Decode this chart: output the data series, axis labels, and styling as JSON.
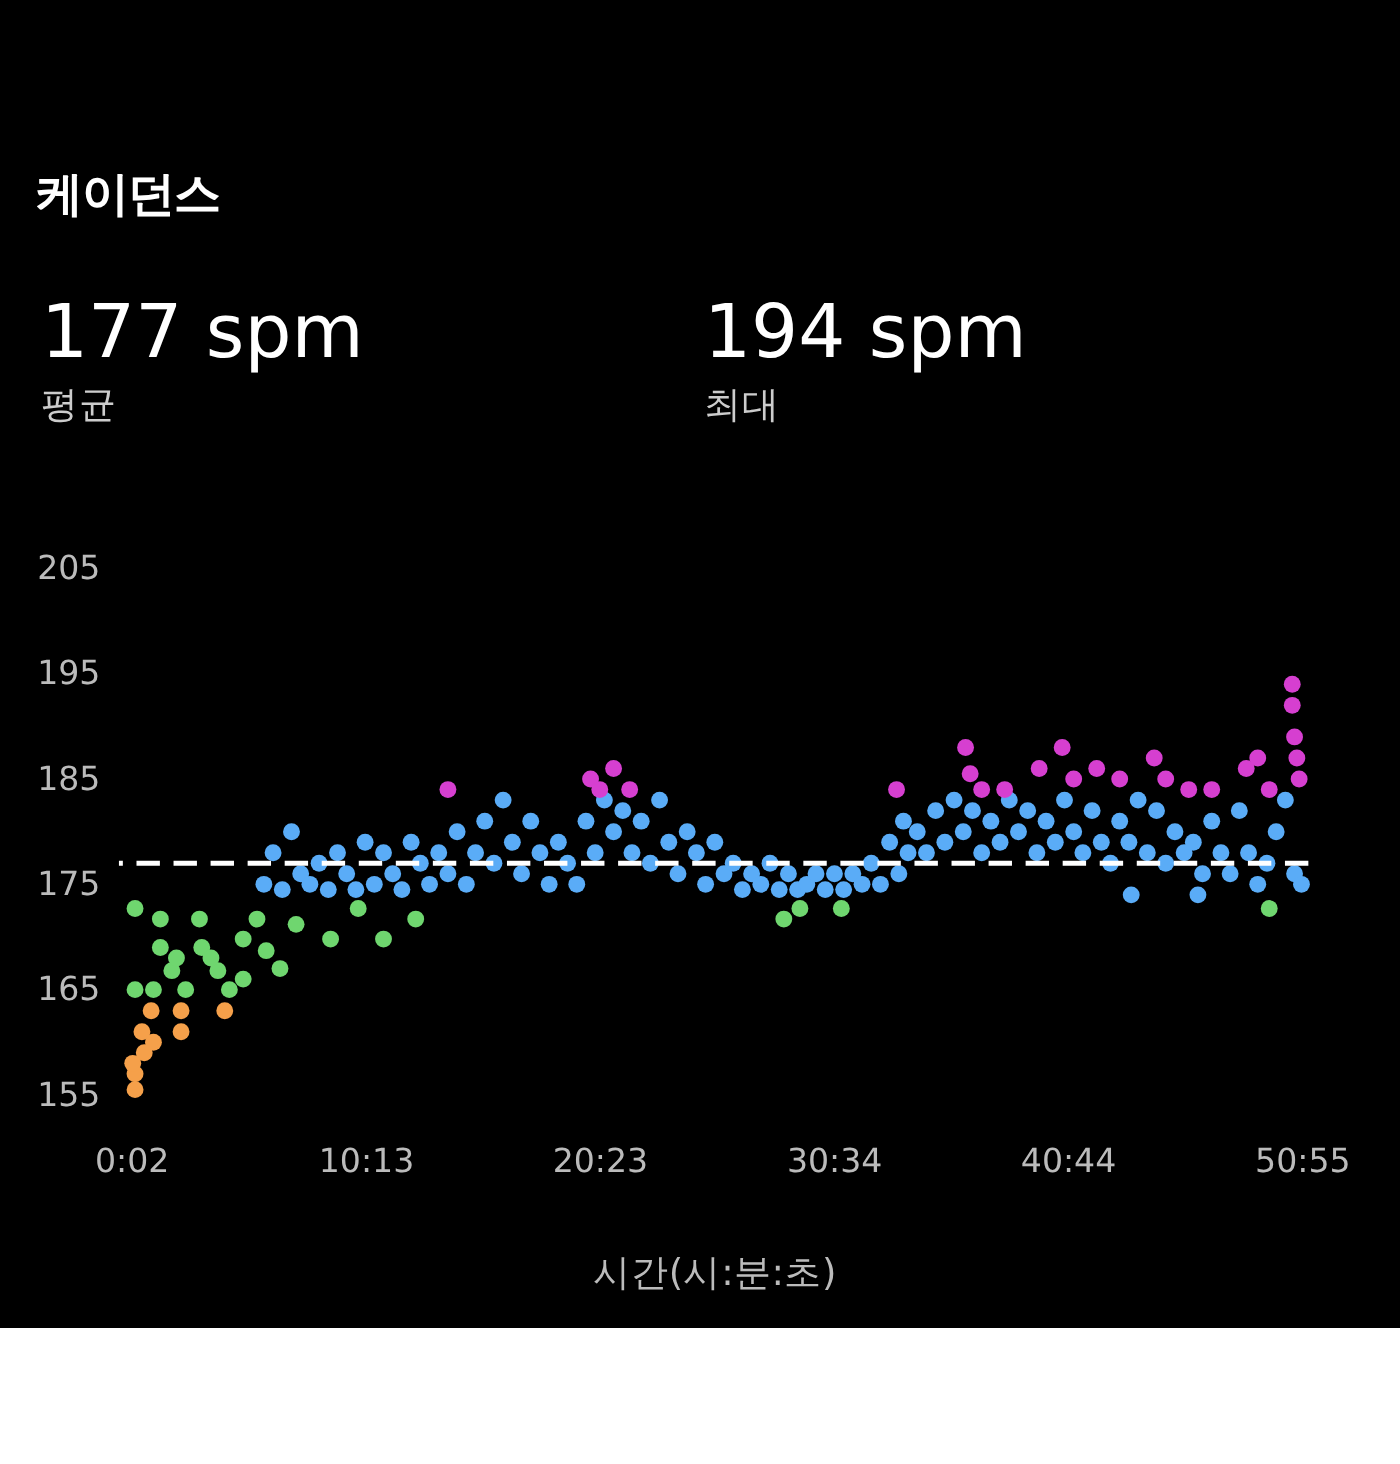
{
  "chart_data": {
    "type": "scatter",
    "title": "케이던스",
    "annotations": [
      "177 spm",
      "평균",
      "194 spm",
      "최대"
    ],
    "xlabel": "시간(시:분:초)",
    "xlim": [
      -0.5,
      51.2
    ],
    "xticks": [
      {
        "value": 0.033,
        "label": "0:02"
      },
      {
        "value": 10.217,
        "label": "10:13"
      },
      {
        "value": 20.383,
        "label": "20:23"
      },
      {
        "value": 30.567,
        "label": "30:34"
      },
      {
        "value": 40.733,
        "label": "40:44"
      },
      {
        "value": 50.917,
        "label": "50:55"
      }
    ],
    "ylim": [
      155,
      205
    ],
    "yticks": [
      155,
      165,
      175,
      185,
      195,
      205
    ],
    "grid": false,
    "marker": "circle",
    "ref_lines": [
      {
        "axis": "y",
        "value": 177,
        "color": "#ffffff",
        "line_style": "dashed"
      }
    ],
    "series": [
      {
        "color": "#f5a04a",
        "x": [
          0.2,
          0.2,
          0.5,
          0.6,
          0.9,
          2.2,
          2.2,
          4.1,
          0.1,
          1.0
        ],
        "values": [
          155.5,
          157,
          161,
          159,
          163,
          163,
          161,
          163,
          158,
          160
        ]
      },
      {
        "color": "#6fd66f",
        "x": [
          0.2,
          0.2,
          1.0,
          1.3,
          1.3,
          1.8,
          3.0,
          3.1,
          2.4,
          3.8,
          4.3,
          4.9,
          4.9,
          5.5,
          5.9,
          7.2,
          8.7,
          11.0,
          9.9,
          12.4,
          28.4,
          29.1,
          30.9,
          49.5,
          2.0,
          3.5,
          6.5
        ],
        "values": [
          172.7,
          165,
          165,
          171.7,
          169,
          166.8,
          171.7,
          169,
          165,
          166.8,
          165,
          166,
          169.8,
          171.7,
          168.7,
          171.2,
          169.8,
          169.8,
          172.7,
          171.7,
          171.7,
          172.7,
          172.7,
          172.7,
          168,
          168,
          167
        ]
      },
      {
        "color": "#5aacf7",
        "x": [
          5.8,
          6.2,
          6.6,
          7.0,
          7.4,
          7.8,
          8.2,
          8.6,
          9.0,
          9.4,
          9.8,
          10.2,
          10.6,
          11.0,
          11.4,
          11.8,
          12.2,
          12.6,
          13.0,
          13.4,
          13.8,
          14.2,
          14.6,
          15.0,
          15.4,
          15.8,
          16.2,
          16.6,
          17.0,
          17.4,
          17.8,
          18.2,
          18.6,
          19.0,
          19.4,
          19.8,
          20.2,
          20.6,
          21.0,
          21.4,
          21.8,
          22.2,
          22.6,
          23.0,
          23.4,
          23.8,
          24.2,
          24.6,
          25.0,
          25.4,
          25.8,
          26.2,
          26.6,
          27.0,
          27.4,
          27.8,
          28.2,
          28.6,
          29.0,
          29.4,
          29.8,
          30.2,
          30.6,
          31.0,
          31.4,
          31.8,
          32.2,
          32.6,
          33.0,
          33.4,
          33.8,
          34.2,
          34.6,
          35.0,
          35.4,
          35.8,
          36.2,
          36.6,
          37.0,
          37.4,
          37.8,
          38.2,
          38.6,
          39.0,
          39.4,
          39.8,
          40.2,
          40.6,
          41.0,
          41.4,
          41.8,
          42.2,
          42.6,
          43.0,
          43.4,
          43.8,
          44.2,
          44.6,
          45.0,
          45.4,
          45.8,
          46.2,
          46.6,
          47.0,
          47.4,
          47.8,
          48.2,
          48.6,
          49.0,
          49.4,
          49.8,
          50.2,
          50.6,
          50.9,
          43.5,
          46.4,
          33.6
        ],
        "values": [
          175,
          178,
          174.5,
          180,
          176,
          175,
          177,
          174.5,
          178,
          176,
          174.5,
          179,
          175,
          178,
          176,
          174.5,
          179,
          177,
          175,
          178,
          176,
          180,
          175,
          178,
          181,
          177,
          183,
          179,
          176,
          181,
          178,
          175,
          179,
          177,
          175,
          181,
          178,
          183,
          180,
          182,
          178,
          181,
          177,
          183,
          179,
          176,
          180,
          178,
          175,
          179,
          176,
          177,
          174.5,
          176,
          175,
          177,
          174.5,
          176,
          174.5,
          175,
          176,
          174.5,
          176,
          174.5,
          176,
          175,
          177,
          175,
          179,
          176,
          178,
          180,
          178,
          182,
          179,
          183,
          180,
          182,
          178,
          181,
          179,
          183,
          180,
          182,
          178,
          181,
          179,
          183,
          180,
          178,
          182,
          179,
          177,
          181,
          179,
          183,
          178,
          182,
          177,
          180,
          178,
          179,
          176,
          181,
          178,
          176,
          182,
          178,
          175,
          177,
          180,
          183,
          176,
          175,
          174,
          174,
          181
        ]
      },
      {
        "color": "#d63fd0",
        "x": [
          13.8,
          20.0,
          20.4,
          21.0,
          21.7,
          33.3,
          36.3,
          36.5,
          37.0,
          38.0,
          39.5,
          40.5,
          41.0,
          42.0,
          43.0,
          44.5,
          45.0,
          46.0,
          47.0,
          48.5,
          49.0,
          49.5,
          50.5,
          50.5,
          50.6,
          50.7,
          50.8
        ],
        "values": [
          184,
          185,
          184,
          186,
          184,
          184,
          188,
          185.5,
          184,
          184,
          186,
          188,
          185,
          186,
          185,
          187,
          185,
          184,
          184,
          186,
          187,
          184,
          194,
          192,
          189,
          187,
          185
        ]
      }
    ]
  }
}
